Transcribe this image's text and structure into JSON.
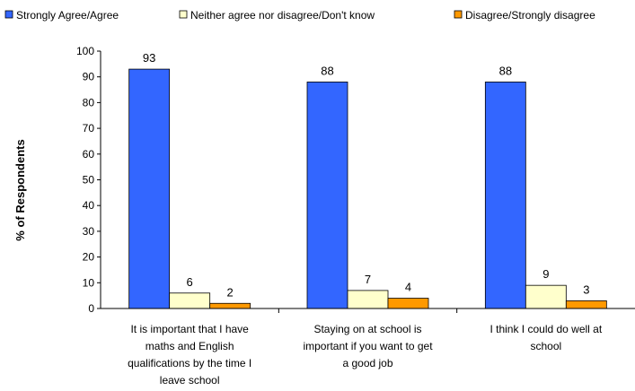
{
  "chart_data": {
    "type": "bar",
    "ylabel": "% of Respondents",
    "ylim": [
      0,
      100
    ],
    "yticks": [
      0,
      10,
      20,
      30,
      40,
      50,
      60,
      70,
      80,
      90,
      100
    ],
    "grid": false,
    "legend_position": "top",
    "categories": [
      [
        "It is important that I have",
        "maths and English",
        "qualifications by the time I",
        "leave school"
      ],
      [
        "Staying on at school is",
        "important if you want to get",
        "a good job"
      ],
      [
        "I think I could do well at",
        "school"
      ]
    ],
    "series": [
      {
        "name": "Strongly Agree/Agree",
        "values": [
          93,
          88,
          88
        ],
        "color": "#3366FF"
      },
      {
        "name": "Neither agree nor disagree/Don't know",
        "values": [
          6,
          7,
          9
        ],
        "color": "#FFFFCC"
      },
      {
        "name": "Disagree/Strongly disagree",
        "values": [
          2,
          4,
          3
        ],
        "color": "#FF9900"
      }
    ]
  }
}
